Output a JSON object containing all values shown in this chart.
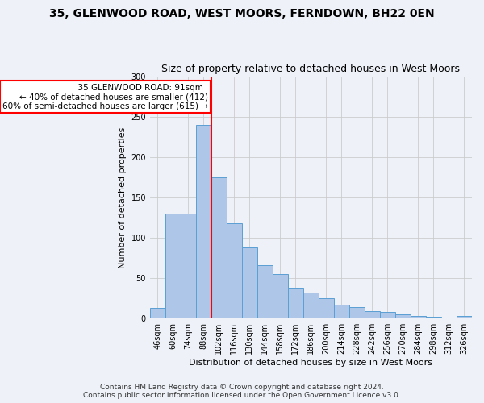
{
  "title1": "35, GLENWOOD ROAD, WEST MOORS, FERNDOWN, BH22 0EN",
  "title2": "Size of property relative to detached houses in West Moors",
  "xlabel": "Distribution of detached houses by size in West Moors",
  "ylabel": "Number of detached properties",
  "categories": [
    "46sqm",
    "60sqm",
    "74sqm",
    "88sqm",
    "102sqm",
    "116sqm",
    "130sqm",
    "144sqm",
    "158sqm",
    "172sqm",
    "186sqm",
    "200sqm",
    "214sqm",
    "228sqm",
    "242sqm",
    "256sqm",
    "270sqm",
    "284sqm",
    "298sqm",
    "312sqm",
    "326sqm"
  ],
  "values": [
    13,
    130,
    130,
    240,
    175,
    118,
    88,
    66,
    55,
    38,
    32,
    25,
    17,
    14,
    9,
    8,
    5,
    3,
    2,
    1,
    3
  ],
  "bar_color": "#aec6e8",
  "bar_edge_color": "#5a9fd4",
  "grid_color": "#cccccc",
  "annotation_text": "  35 GLENWOOD ROAD: 91sqm  \n← 40% of detached houses are smaller (412)\n60% of semi-detached houses are larger (615) →",
  "annotation_box_color": "white",
  "annotation_box_edge_color": "red",
  "vline_color": "red",
  "footer1": "Contains HM Land Registry data © Crown copyright and database right 2024.",
  "footer2": "Contains public sector information licensed under the Open Government Licence v3.0.",
  "ylim": [
    0,
    300
  ],
  "background_color": "#eef2f8",
  "title1_fontsize": 10,
  "title2_fontsize": 9,
  "ylabel_fontsize": 8,
  "xlabel_fontsize": 8,
  "tick_fontsize": 7,
  "footer_fontsize": 6.5
}
